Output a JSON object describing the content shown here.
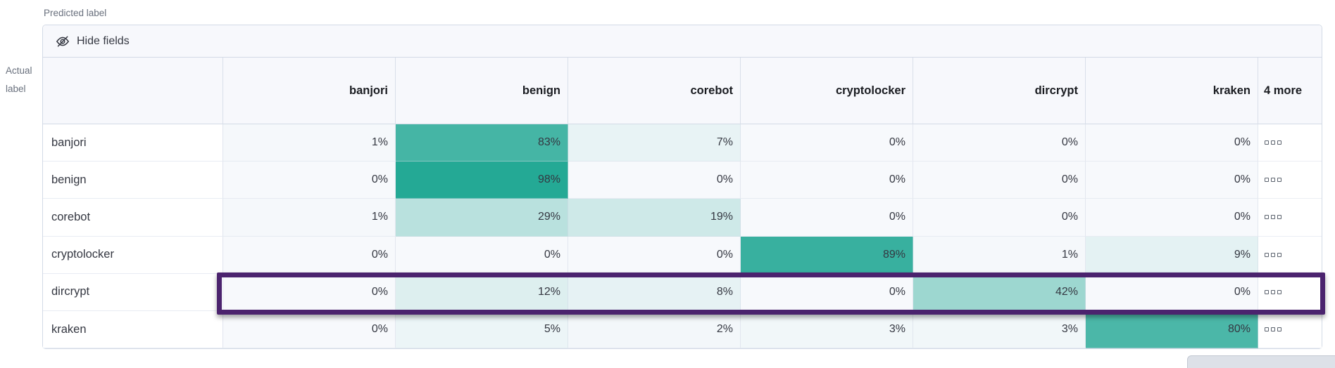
{
  "labels": {
    "predicted_axis": "Predicted label",
    "actual_line1": "Actual",
    "actual_line2": "label"
  },
  "toolbar": {
    "hide_fields": "Hide fields"
  },
  "chart_data": {
    "type": "heatmap",
    "col_axis_label": "Predicted label",
    "row_axis_label": "Actual label",
    "columns": [
      "banjori",
      "benign",
      "corebot",
      "cryptolocker",
      "dircrypt",
      "kraken"
    ],
    "more_columns_header": "4 more",
    "value_suffix": "%",
    "rows": [
      {
        "label": "banjori",
        "values_pct": [
          1,
          83,
          7,
          0,
          0,
          0
        ]
      },
      {
        "label": "benign",
        "values_pct": [
          0,
          98,
          0,
          0,
          0,
          0
        ]
      },
      {
        "label": "corebot",
        "values_pct": [
          1,
          29,
          19,
          0,
          0,
          0
        ]
      },
      {
        "label": "cryptolocker",
        "values_pct": [
          0,
          0,
          0,
          89,
          1,
          9
        ]
      },
      {
        "label": "dircrypt",
        "values_pct": [
          0,
          12,
          8,
          0,
          42,
          0
        ]
      },
      {
        "label": "kraken",
        "values_pct": [
          0,
          5,
          2,
          3,
          3,
          80
        ]
      }
    ],
    "highlighted_row": "dircrypt",
    "colors": {
      "heat_base": "#20A793",
      "zero_cell": "#F7F9FC",
      "highlight_border": "#4B236E"
    }
  }
}
